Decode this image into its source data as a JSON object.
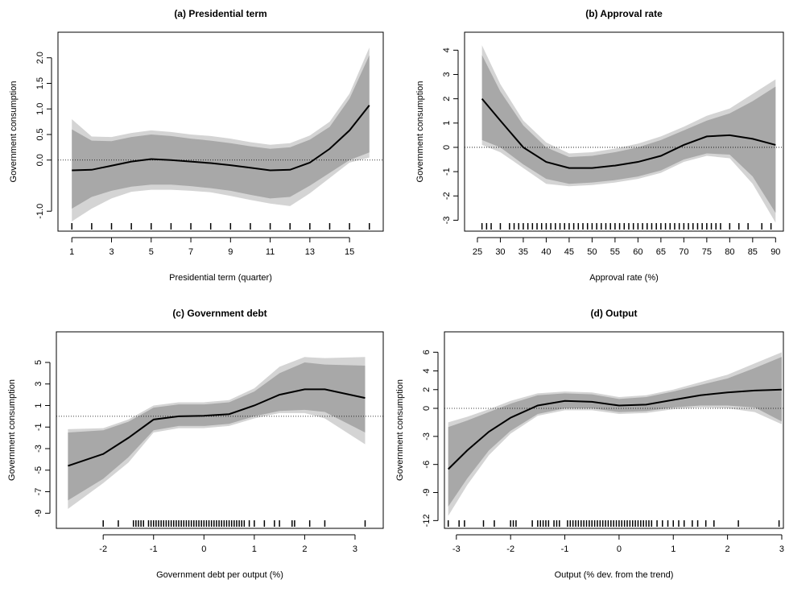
{
  "chart_data": [
    {
      "type": "line",
      "title": "(a) Presidential term",
      "xlabel": "Presidential term (quarter)",
      "ylabel": "Government consumption",
      "x": [
        1,
        2,
        3,
        4,
        5,
        6,
        7,
        8,
        9,
        10,
        11,
        12,
        13,
        14,
        15,
        16
      ],
      "values": [
        -0.2,
        -0.19,
        -0.11,
        -0.03,
        0.02,
        0.0,
        -0.03,
        -0.06,
        -0.1,
        -0.15,
        -0.2,
        -0.19,
        -0.05,
        0.22,
        0.58,
        1.07
      ],
      "inner_upper": [
        0.6,
        0.38,
        0.37,
        0.45,
        0.5,
        0.47,
        0.42,
        0.38,
        0.33,
        0.27,
        0.22,
        0.25,
        0.4,
        0.65,
        1.2,
        2.05
      ],
      "inner_lower": [
        -0.95,
        -0.72,
        -0.6,
        -0.52,
        -0.48,
        -0.48,
        -0.51,
        -0.55,
        -0.6,
        -0.68,
        -0.75,
        -0.72,
        -0.5,
        -0.25,
        0.0,
        0.15
      ],
      "outer_upper": [
        0.8,
        0.46,
        0.45,
        0.53,
        0.58,
        0.55,
        0.5,
        0.47,
        0.42,
        0.35,
        0.3,
        0.33,
        0.48,
        0.75,
        1.3,
        2.2
      ],
      "outer_lower": [
        -1.2,
        -0.95,
        -0.75,
        -0.62,
        -0.58,
        -0.58,
        -0.6,
        -0.63,
        -0.7,
        -0.78,
        -0.85,
        -0.9,
        -0.65,
        -0.35,
        -0.05,
        0.05
      ],
      "rug": [
        1,
        2,
        3,
        4,
        5,
        6,
        7,
        8,
        9,
        10,
        11,
        12,
        13,
        14,
        15,
        16
      ],
      "hline": 0,
      "xlim": [
        0.3,
        16.7
      ],
      "xticks": [
        1,
        3,
        5,
        7,
        9,
        11,
        13,
        15
      ],
      "ylim": [
        -1.39,
        2.5
      ],
      "yticks": [
        {
          "value": -1,
          "label": "-1.0"
        },
        {
          "value": 0,
          "label": "0.0"
        },
        0.5,
        {
          "value": 1,
          "label": "1.0"
        },
        1.5,
        {
          "value": 2,
          "label": "2.0"
        }
      ],
      "colors": {
        "line": "#000000",
        "inner_band": "#a8a8a8",
        "outer_band": "#d4d4d4"
      }
    },
    {
      "type": "line",
      "title": "(b) Approval rate",
      "xlabel": "Approval rate (%)",
      "ylabel": "Government consumption",
      "x": [
        26,
        30,
        35,
        40,
        45,
        50,
        55,
        60,
        65,
        70,
        75,
        80,
        85,
        90
      ],
      "values": [
        2.0,
        1.1,
        0.0,
        -0.6,
        -0.85,
        -0.85,
        -0.75,
        -0.6,
        -0.35,
        0.1,
        0.45,
        0.5,
        0.35,
        0.1
      ],
      "inner_upper": [
        3.8,
        2.3,
        0.9,
        0.0,
        -0.4,
        -0.35,
        -0.2,
        0.0,
        0.3,
        0.7,
        1.1,
        1.4,
        1.9,
        2.5
      ],
      "inner_lower": [
        0.3,
        0.0,
        -0.7,
        -1.3,
        -1.5,
        -1.45,
        -1.35,
        -1.2,
        -0.95,
        -0.5,
        -0.25,
        -0.3,
        -1.2,
        -2.7
      ],
      "outer_upper": [
        4.2,
        2.6,
        1.1,
        0.2,
        -0.25,
        -0.2,
        -0.05,
        0.15,
        0.45,
        0.85,
        1.3,
        1.6,
        2.2,
        2.8
      ],
      "outer_lower": [
        0.1,
        -0.2,
        -0.85,
        -1.5,
        -1.6,
        -1.55,
        -1.45,
        -1.3,
        -1.05,
        -0.6,
        -0.35,
        -0.45,
        -1.5,
        -3.1
      ],
      "rug": [
        26,
        27,
        28,
        30,
        32,
        33,
        34,
        35,
        36,
        37,
        38,
        39,
        40,
        41,
        42,
        43,
        44,
        45,
        46,
        47,
        48,
        49,
        50,
        51,
        52,
        53,
        54,
        55,
        56,
        57,
        58,
        59,
        60,
        61,
        62,
        63,
        64,
        65,
        66,
        67,
        68,
        69,
        70,
        71,
        72,
        73,
        74,
        75,
        76,
        77,
        78,
        80,
        82,
        84,
        87,
        89
      ],
      "hline": 0,
      "xlim": [
        22.2,
        91.7
      ],
      "xticks": [
        25,
        30,
        35,
        40,
        45,
        50,
        55,
        60,
        65,
        70,
        75,
        80,
        85,
        90
      ],
      "ylim": [
        -3.45,
        4.74
      ],
      "yticks": [
        -3,
        -2,
        -1,
        0,
        1,
        2,
        3,
        4
      ],
      "colors": {
        "line": "#000000",
        "inner_band": "#a8a8a8",
        "outer_band": "#d4d4d4"
      }
    },
    {
      "type": "line",
      "title": "(c) Government debt",
      "xlabel": "Government debt per output (%)",
      "ylabel": "Government consumption",
      "x": [
        -2.7,
        -2,
        -1.5,
        -1,
        -0.5,
        0,
        0.5,
        1,
        1.5,
        2,
        2.4,
        3.2
      ],
      "values": [
        -4.6,
        -3.5,
        -2.0,
        -0.3,
        0.0,
        0.05,
        0.2,
        1.0,
        2.0,
        2.5,
        2.5,
        1.7
      ],
      "inner_upper": [
        -1.5,
        -1.3,
        -0.5,
        0.8,
        1.1,
        1.1,
        1.3,
        2.3,
        4.0,
        5.0,
        4.8,
        4.7
      ],
      "inner_lower": [
        -7.8,
        -5.8,
        -3.8,
        -1.3,
        -0.9,
        -0.9,
        -0.7,
        0.0,
        0.5,
        0.6,
        0.4,
        -1.5
      ],
      "outer_upper": [
        -1.2,
        -1.1,
        -0.3,
        1.0,
        1.3,
        1.3,
        1.5,
        2.6,
        4.6,
        5.5,
        5.4,
        5.5
      ],
      "outer_lower": [
        -8.6,
        -6.2,
        -4.3,
        -1.5,
        -1.1,
        -1.1,
        -0.9,
        -0.2,
        0.3,
        0.3,
        -0.2,
        -2.6
      ],
      "rug": [
        -2.0,
        -1.7,
        -1.4,
        -1.35,
        -1.3,
        -1.25,
        -1.2,
        -1.1,
        -1.05,
        -1.0,
        -0.95,
        -0.9,
        -0.85,
        -0.8,
        -0.75,
        -0.7,
        -0.65,
        -0.6,
        -0.55,
        -0.5,
        -0.45,
        -0.4,
        -0.35,
        -0.3,
        -0.25,
        -0.2,
        -0.15,
        -0.1,
        -0.05,
        0.0,
        0.05,
        0.1,
        0.15,
        0.2,
        0.25,
        0.3,
        0.35,
        0.4,
        0.45,
        0.5,
        0.55,
        0.6,
        0.65,
        0.7,
        0.75,
        0.8,
        0.9,
        1.0,
        1.2,
        1.4,
        1.5,
        1.75,
        1.8,
        2.1,
        2.4,
        3.2
      ],
      "hline": 0,
      "xlim": [
        -2.93,
        3.56
      ],
      "xticks": [
        -2,
        -1,
        0,
        1,
        2,
        3
      ],
      "ylim": [
        -10.4,
        7.84
      ],
      "yticks": [
        -9,
        -7,
        -5,
        -3,
        -1,
        1,
        3,
        5
      ],
      "colors": {
        "line": "#000000",
        "inner_band": "#a8a8a8",
        "outer_band": "#d4d4d4"
      }
    },
    {
      "type": "line",
      "title": "(d) Output",
      "xlabel": "Output (% dev. from the trend)",
      "ylabel": "Government consumption",
      "x": [
        -3.15,
        -2.8,
        -2.4,
        -2,
        -1.5,
        -1,
        -0.5,
        0,
        0.5,
        1,
        1.5,
        2,
        2.5,
        3.0
      ],
      "values": [
        -6.5,
        -4.5,
        -2.5,
        -1.0,
        0.3,
        0.8,
        0.7,
        0.3,
        0.4,
        0.9,
        1.4,
        1.7,
        1.9,
        2.0
      ],
      "inner_upper": [
        -2.0,
        -1.3,
        -0.4,
        0.5,
        1.4,
        1.6,
        1.5,
        1.0,
        1.2,
        1.8,
        2.5,
        3.2,
        4.3,
        5.5
      ],
      "inner_lower": [
        -10.5,
        -7.5,
        -4.5,
        -2.4,
        -0.6,
        0.0,
        0.0,
        -0.4,
        -0.3,
        0.1,
        0.3,
        0.3,
        0.1,
        -1.4
      ],
      "outer_upper": [
        -1.5,
        -0.9,
        -0.1,
        0.8,
        1.6,
        1.8,
        1.7,
        1.2,
        1.4,
        2.0,
        2.8,
        3.6,
        4.8,
        6.0
      ],
      "outer_lower": [
        -11.5,
        -8.2,
        -5.0,
        -2.7,
        -0.8,
        -0.2,
        -0.2,
        -0.6,
        -0.5,
        -0.1,
        0.1,
        0.0,
        -0.4,
        -1.7
      ],
      "rug": [
        -3.15,
        -2.95,
        -2.85,
        -2.5,
        -2.3,
        -2.0,
        -1.95,
        -1.9,
        -1.6,
        -1.5,
        -1.45,
        -1.4,
        -1.35,
        -1.3,
        -1.2,
        -1.15,
        -1.1,
        -0.95,
        -0.9,
        -0.85,
        -0.8,
        -0.75,
        -0.7,
        -0.65,
        -0.6,
        -0.55,
        -0.5,
        -0.45,
        -0.4,
        -0.35,
        -0.3,
        -0.25,
        -0.2,
        -0.15,
        -0.1,
        -0.05,
        0.0,
        0.05,
        0.1,
        0.15,
        0.2,
        0.25,
        0.3,
        0.35,
        0.4,
        0.45,
        0.5,
        0.55,
        0.6,
        0.7,
        0.8,
        0.9,
        1.0,
        1.1,
        1.2,
        1.35,
        1.45,
        1.6,
        1.75,
        2.2,
        2.95
      ],
      "hline": 0,
      "xlim": [
        -3.22,
        3.03
      ],
      "xticks": [
        -3,
        -2,
        -1,
        0,
        1,
        2,
        3
      ],
      "ylim": [
        -12.83,
        8.18
      ],
      "yticks": [
        -12,
        -9,
        -6,
        -3,
        0,
        2,
        4,
        6
      ],
      "colors": {
        "line": "#000000",
        "inner_band": "#a8a8a8",
        "outer_band": "#d4d4d4"
      }
    }
  ]
}
